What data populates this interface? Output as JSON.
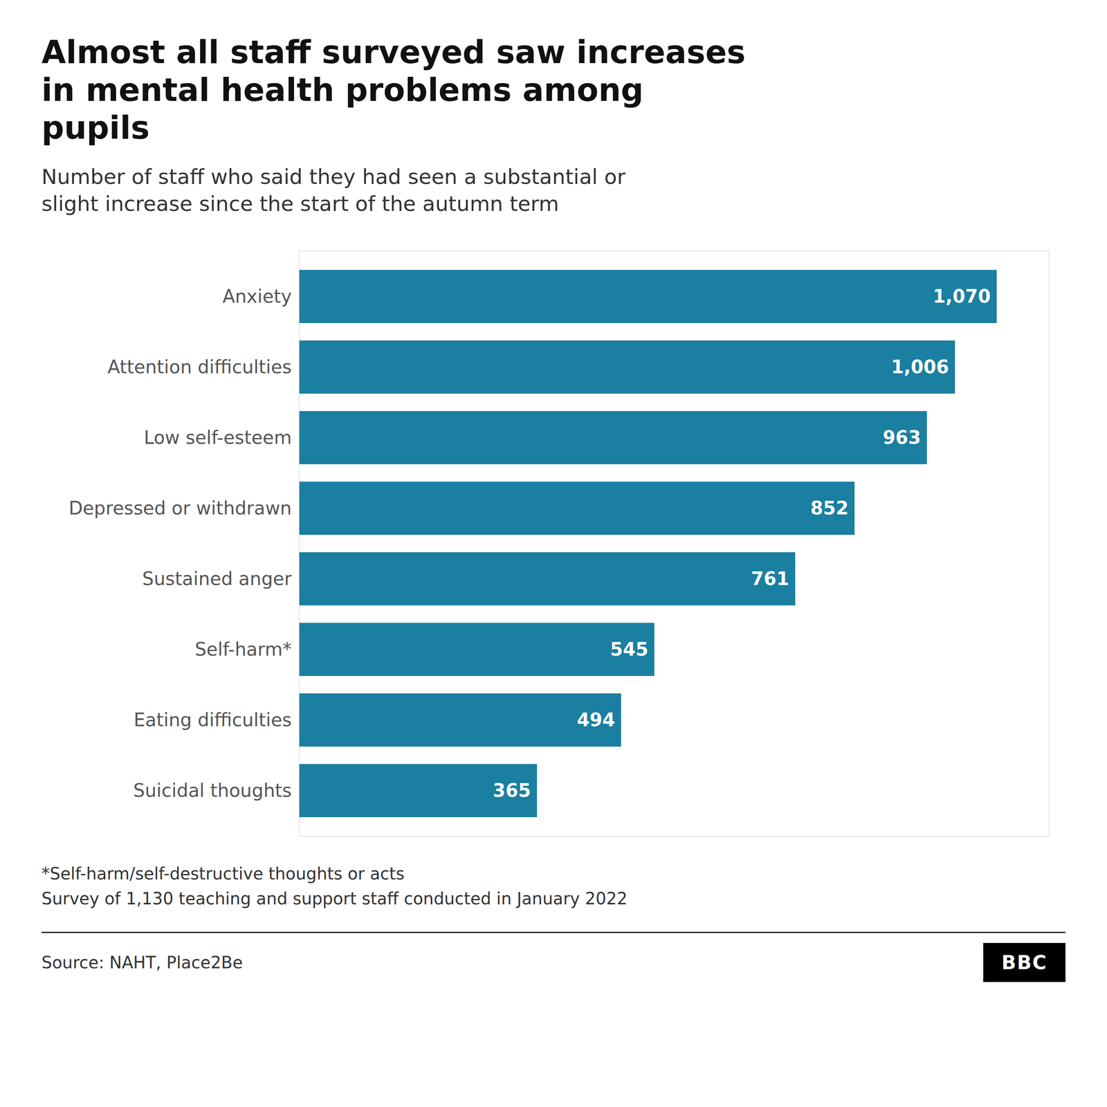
{
  "chart_data": {
    "type": "bar",
    "orientation": "horizontal",
    "title": "Almost all staff surveyed saw increases in mental health problems among pupils",
    "subtitle": "Number of staff who said they had seen a substantial or slight increase since the start of the autumn term",
    "categories": [
      "Anxiety",
      "Attention difficulties",
      "Low self-esteem",
      "Depressed or withdrawn",
      "Sustained anger",
      "Self-harm*",
      "Eating difficulties",
      "Suicidal thoughts"
    ],
    "values": [
      1070,
      1006,
      963,
      852,
      761,
      545,
      494,
      365
    ],
    "value_labels": [
      "1,070",
      "1,006",
      "963",
      "852",
      "761",
      "545",
      "494",
      "365"
    ],
    "data_labels": true,
    "color": "#1a7fa0",
    "xlim": [
      0,
      1150
    ],
    "tick_labels": "y",
    "grid": false,
    "footnotes": [
      "*Self-harm/self-destructive thoughts or acts",
      "Survey of 1,130 teaching and support staff conducted in January 2022"
    ],
    "source": "Source: NAHT, Place2Be",
    "logo": "BBC"
  }
}
